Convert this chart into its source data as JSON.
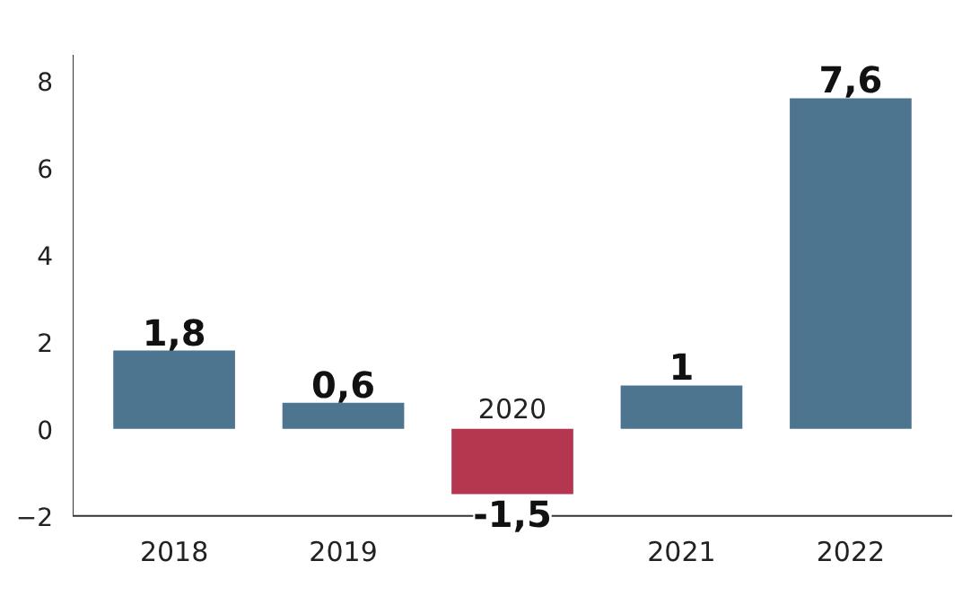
{
  "chart_data": {
    "type": "bar",
    "categories": [
      "2018",
      "2019",
      "2020",
      "2021",
      "2022"
    ],
    "values": [
      1.8,
      0.6,
      -1.5,
      1,
      7.6
    ],
    "colors": [
      "#4e7590",
      "#4e7590",
      "#b5374f",
      "#4e7590",
      "#4e7590"
    ],
    "value_labels": [
      "1,8",
      "0,6",
      "-1,5",
      "1",
      "7,6"
    ],
    "ylim": [
      -2,
      8.6
    ],
    "yticks": [
      -2,
      0,
      2,
      4,
      6,
      8
    ],
    "grid": false
  }
}
